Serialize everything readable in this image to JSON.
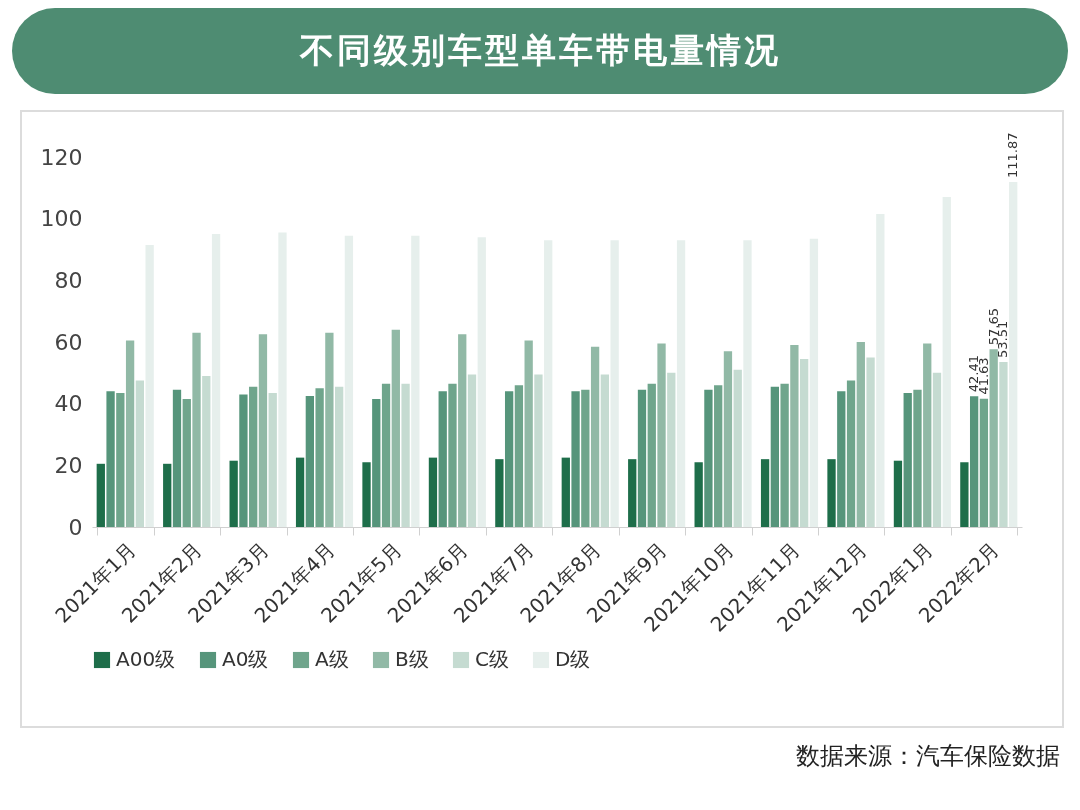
{
  "chart_data": {
    "type": "bar",
    "title": "不同级别车型单车带电量情况",
    "categories": [
      "2021年1月",
      "2021年2月",
      "2021年3月",
      "2021年4月",
      "2021年5月",
      "2021年6月",
      "2021年7月",
      "2021年8月",
      "2021年9月",
      "2021年10月",
      "2021年11月",
      "2021年12月",
      "2022年1月",
      "2022年2月"
    ],
    "series": [
      {
        "name": "A00级",
        "color": "#1e6e4a",
        "values": [
          20.5,
          20.5,
          21.5,
          22.5,
          21,
          22.5,
          22,
          22.5,
          22,
          21,
          22,
          22,
          21.5,
          21
        ],
        "value_labels": [
          null,
          null,
          null,
          null,
          null,
          null,
          null,
          null,
          null,
          null,
          null,
          null,
          null,
          null
        ]
      },
      {
        "name": "A0级",
        "color": "#56957b",
        "values": [
          44,
          44.5,
          43,
          42.5,
          41.5,
          44,
          44,
          44,
          44.5,
          44.5,
          45.5,
          44,
          43.5,
          42.41
        ],
        "value_labels": [
          null,
          null,
          null,
          null,
          null,
          null,
          null,
          null,
          null,
          null,
          null,
          null,
          null,
          "42.41"
        ]
      },
      {
        "name": "A级",
        "color": "#6fa58c",
        "values": [
          43.5,
          41.5,
          45.5,
          45,
          46.5,
          46.5,
          46,
          44.5,
          46.5,
          46,
          46.5,
          47.5,
          44.5,
          41.63
        ],
        "value_labels": [
          null,
          null,
          null,
          null,
          null,
          null,
          null,
          null,
          null,
          null,
          null,
          null,
          null,
          "41.63"
        ]
      },
      {
        "name": "B级",
        "color": "#91b9a6",
        "values": [
          60.5,
          63,
          62.5,
          63,
          64,
          62.5,
          60.5,
          58.5,
          59.5,
          57,
          59,
          60,
          59.5,
          57.65
        ],
        "value_labels": [
          null,
          null,
          null,
          null,
          null,
          null,
          null,
          null,
          null,
          null,
          null,
          null,
          null,
          "57.65"
        ]
      },
      {
        "name": "C级",
        "color": "#c5dbd1",
        "values": [
          47.5,
          49,
          43.5,
          45.5,
          46.5,
          49.5,
          49.5,
          49.5,
          50,
          51,
          54.5,
          55,
          50,
          53.51
        ],
        "value_labels": [
          null,
          null,
          null,
          null,
          null,
          null,
          null,
          null,
          null,
          null,
          null,
          null,
          null,
          "53.51"
        ]
      },
      {
        "name": "D级",
        "color": "#e6efec",
        "values": [
          91.5,
          95,
          95.5,
          94.5,
          94.5,
          94,
          93,
          93,
          93,
          93,
          93.5,
          101.5,
          107,
          111.87
        ],
        "value_labels": [
          null,
          null,
          null,
          null,
          null,
          null,
          null,
          null,
          null,
          null,
          null,
          null,
          null,
          "111.87"
        ]
      }
    ],
    "ylim": [
      0,
      120
    ],
    "yticks": [
      0,
      20,
      40,
      60,
      80,
      100,
      120
    ],
    "grid": false,
    "legend": "bottom",
    "annotations": [
      "数据来源：汽车保险数据"
    ]
  }
}
